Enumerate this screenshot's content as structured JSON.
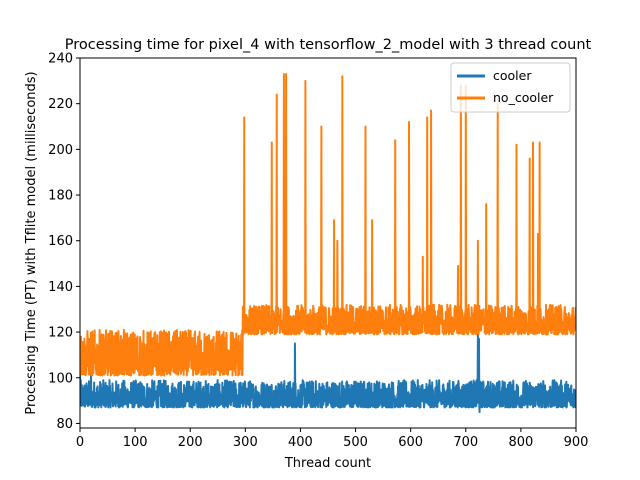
{
  "chart_data": {
    "type": "line",
    "title": "Processing time for pixel_4 with tensorflow_2_model with 3 thread count",
    "xlabel": "Thread count",
    "ylabel": "Processing Time (PT) with Tflite model (milliseconds)",
    "xlim": [
      0,
      900
    ],
    "ylim": [
      78,
      240
    ],
    "xticks": [
      0,
      100,
      200,
      300,
      400,
      500,
      600,
      700,
      800,
      900
    ],
    "yticks": [
      80,
      100,
      120,
      140,
      160,
      180,
      200,
      220,
      240
    ],
    "grid": false,
    "legend": {
      "position": "top-right"
    },
    "series": [
      {
        "name": "cooler",
        "color": "#1f77b4",
        "baseline_range": [
          87,
          99
        ],
        "spikes": [
          {
            "x": 0,
            "y": 101
          },
          {
            "x": 20,
            "y": 102
          },
          {
            "x": 390,
            "y": 115
          },
          {
            "x": 722,
            "y": 119
          },
          {
            "x": 724,
            "y": 117
          },
          {
            "x": 725,
            "y": 85
          }
        ]
      },
      {
        "name": "no_cooler",
        "color": "#ff7f0e",
        "segments": [
          {
            "x_range": [
              0,
              295
            ],
            "baseline_range": [
              101,
              121
            ]
          },
          {
            "x_range": [
              295,
              900
            ],
            "baseline_range": [
              119,
              132
            ]
          }
        ],
        "spikes": [
          {
            "x": 298,
            "y": 214
          },
          {
            "x": 348,
            "y": 203
          },
          {
            "x": 357,
            "y": 224
          },
          {
            "x": 370,
            "y": 233
          },
          {
            "x": 374,
            "y": 233
          },
          {
            "x": 409,
            "y": 230
          },
          {
            "x": 438,
            "y": 210
          },
          {
            "x": 461,
            "y": 169
          },
          {
            "x": 467,
            "y": 160
          },
          {
            "x": 476,
            "y": 232
          },
          {
            "x": 518,
            "y": 210
          },
          {
            "x": 530,
            "y": 169
          },
          {
            "x": 572,
            "y": 204
          },
          {
            "x": 597,
            "y": 212
          },
          {
            "x": 622,
            "y": 153
          },
          {
            "x": 630,
            "y": 214
          },
          {
            "x": 637,
            "y": 217
          },
          {
            "x": 686,
            "y": 149
          },
          {
            "x": 691,
            "y": 228
          },
          {
            "x": 700,
            "y": 228
          },
          {
            "x": 722,
            "y": 160
          },
          {
            "x": 737,
            "y": 176
          },
          {
            "x": 758,
            "y": 220
          },
          {
            "x": 792,
            "y": 202
          },
          {
            "x": 816,
            "y": 196
          },
          {
            "x": 822,
            "y": 203
          },
          {
            "x": 831,
            "y": 163
          },
          {
            "x": 834,
            "y": 203
          }
        ]
      }
    ]
  }
}
